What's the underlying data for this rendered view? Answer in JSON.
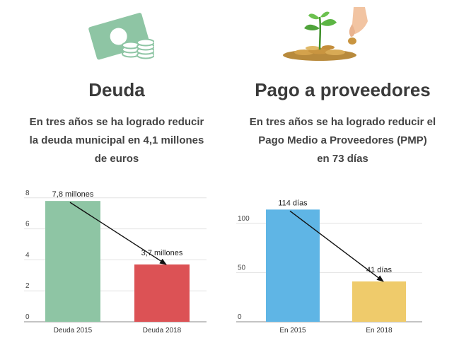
{
  "left": {
    "title": "Deuda",
    "description": [
      "En tres años se ha logrado reducir",
      "la deuda municipal en 4,1 millones",
      "de euros"
    ],
    "icon": "money-bill-coins-icon",
    "accent": "#8ec5a4"
  },
  "right": {
    "title": "Pago a proveedores",
    "description": [
      "En tres años se ha logrado reducir el",
      "Pago Medio a Proveedores (PMP)",
      "en 73 días"
    ],
    "icon": "hand-coins-plant-icon"
  },
  "chart_data": [
    {
      "type": "bar",
      "categories": [
        "Deuda 2015",
        "Deuda 2018"
      ],
      "values": [
        7.8,
        3.7
      ],
      "data_labels": [
        "7,8 millones",
        "3,7 millones"
      ],
      "colors": [
        "#8ec5a4",
        "#dc5255"
      ],
      "yticks": [
        0,
        2,
        4,
        6,
        8
      ],
      "ylim": [
        0,
        8.4
      ],
      "grid": true,
      "arrow": true
    },
    {
      "type": "bar",
      "categories": [
        "En 2015",
        "En 2018"
      ],
      "values": [
        114,
        41
      ],
      "data_labels": [
        "114 días",
        "41 días"
      ],
      "colors": [
        "#5fb5e5",
        "#efcb6b"
      ],
      "yticks": [
        0,
        50,
        100
      ],
      "ylim": [
        0,
        125
      ],
      "grid": true,
      "arrow": true
    }
  ]
}
